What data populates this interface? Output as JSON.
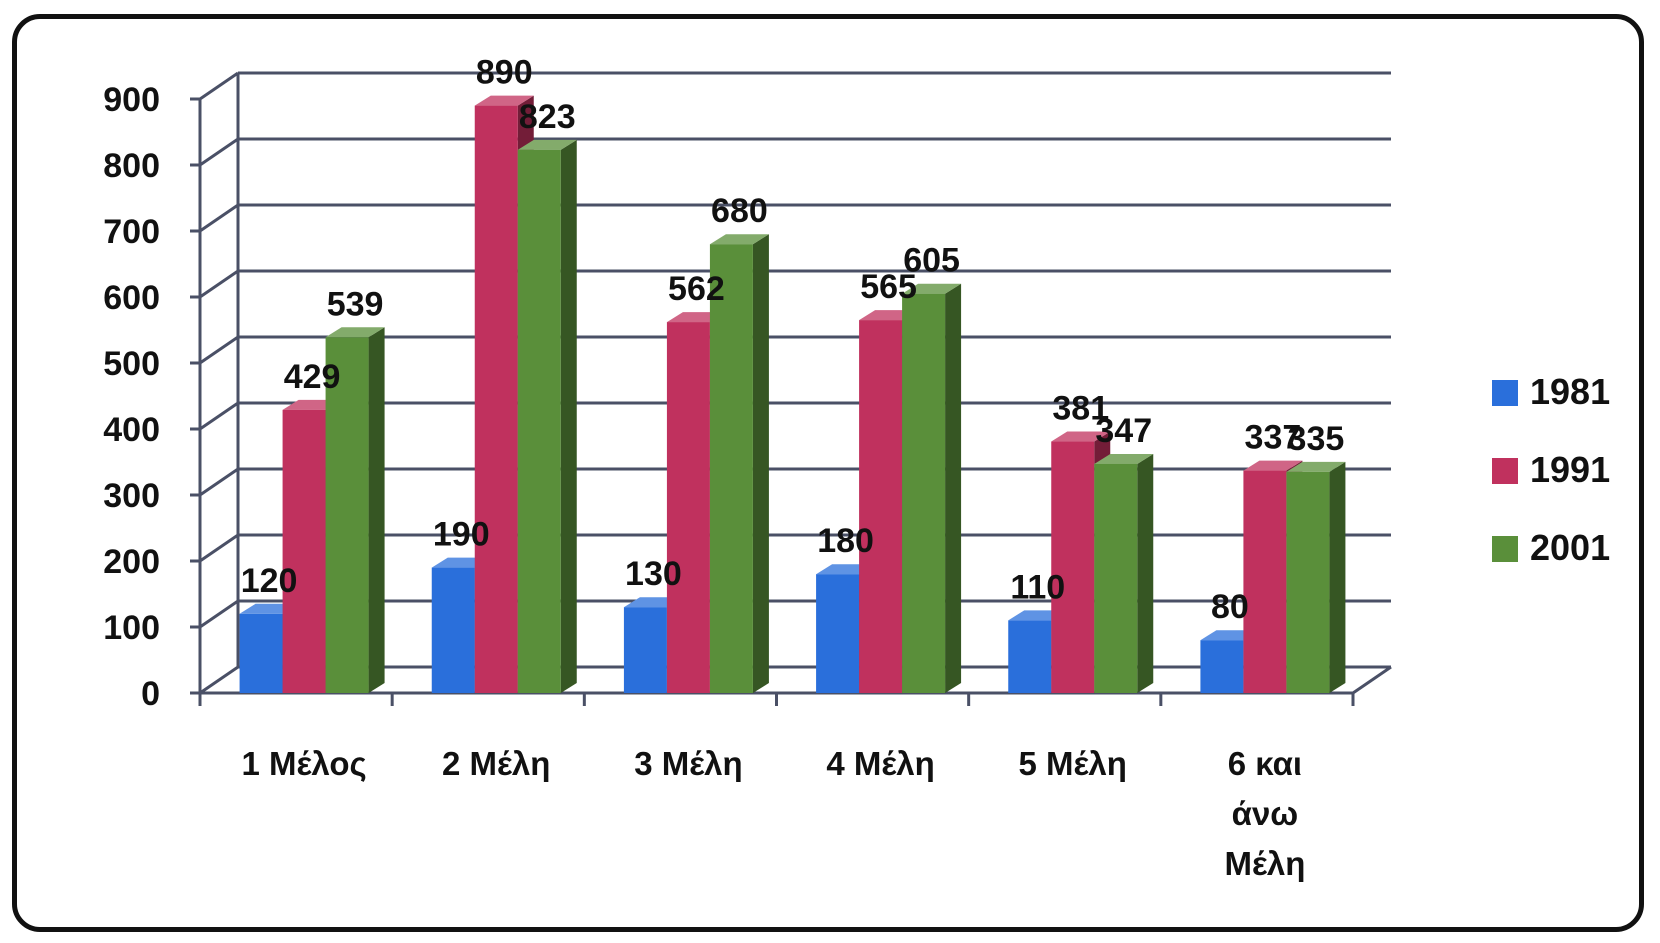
{
  "chart_data": {
    "type": "bar",
    "style": "3d-clustered-column",
    "categories": [
      "1 Μέλος",
      "2 Μέλη",
      "3 Μέλη",
      "4 Μέλη",
      "5 Μέλη",
      "6 και άνω Μέλη"
    ],
    "series": [
      {
        "name": "1981",
        "color": "#2a6fdb",
        "values": [
          120,
          190,
          130,
          180,
          110,
          80
        ]
      },
      {
        "name": "1991",
        "color": "#c0315e",
        "values": [
          429,
          890,
          562,
          565,
          381,
          337
        ]
      },
      {
        "name": "2001",
        "color": "#5a8f3a",
        "values": [
          539,
          823,
          680,
          605,
          347,
          335
        ]
      }
    ],
    "yticks": [
      "0",
      "100",
      "200",
      "300",
      "400",
      "500",
      "600",
      "700",
      "800",
      "900"
    ],
    "ylim": [
      0,
      900
    ],
    "grid": true,
    "legend_position": "right",
    "data_labels": true
  }
}
